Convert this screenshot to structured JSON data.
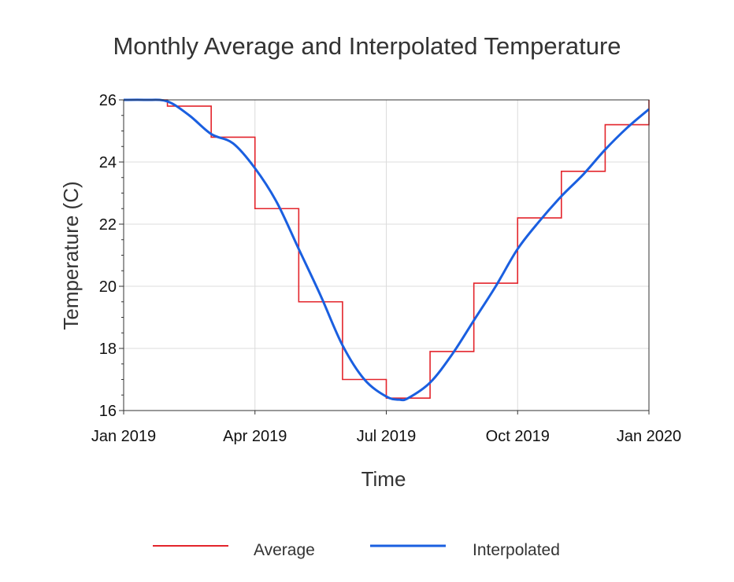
{
  "chart_data": {
    "type": "line",
    "title": "Monthly Average and Interpolated Temperature",
    "xlabel": "Time",
    "ylabel": "Temperature (C)",
    "xlim": [
      0,
      12
    ],
    "ylim": [
      16,
      26
    ],
    "x_ticks": [
      {
        "value": 0,
        "label": "Jan 2019"
      },
      {
        "value": 3,
        "label": "Apr 2019"
      },
      {
        "value": 6,
        "label": "Jul 2019"
      },
      {
        "value": 9,
        "label": "Oct 2019"
      },
      {
        "value": 12,
        "label": "Jan 2020"
      }
    ],
    "y_ticks": [
      16,
      18,
      20,
      22,
      24,
      26
    ],
    "y_minor_step": 0.5,
    "grid": true,
    "legend_position": "bottom",
    "series": [
      {
        "name": "Average",
        "style": "step",
        "color": "#e3242b",
        "months": [
          0,
          1,
          2,
          3,
          4,
          5,
          6,
          7,
          8,
          9,
          10,
          11
        ],
        "values": [
          26.0,
          25.8,
          24.8,
          22.5,
          19.5,
          17.0,
          16.4,
          17.9,
          20.1,
          22.2,
          23.7,
          25.2
        ],
        "final_value": 26.0
      },
      {
        "name": "Interpolated",
        "style": "line",
        "color": "#1a5fe0",
        "x": [
          0,
          0.5,
          1,
          1.5,
          2,
          2.5,
          3,
          3.5,
          4,
          4.5,
          5,
          5.5,
          6,
          6.3,
          6.5,
          7,
          7.5,
          8,
          8.5,
          9,
          9.5,
          10,
          10.5,
          11,
          11.5,
          12
        ],
        "values": [
          26.0,
          26.0,
          25.95,
          25.5,
          24.9,
          24.6,
          23.8,
          22.7,
          21.2,
          19.7,
          18.1,
          17.0,
          16.45,
          16.35,
          16.4,
          16.9,
          17.8,
          18.9,
          20.0,
          21.2,
          22.1,
          22.9,
          23.6,
          24.4,
          25.1,
          25.7
        ]
      }
    ]
  }
}
